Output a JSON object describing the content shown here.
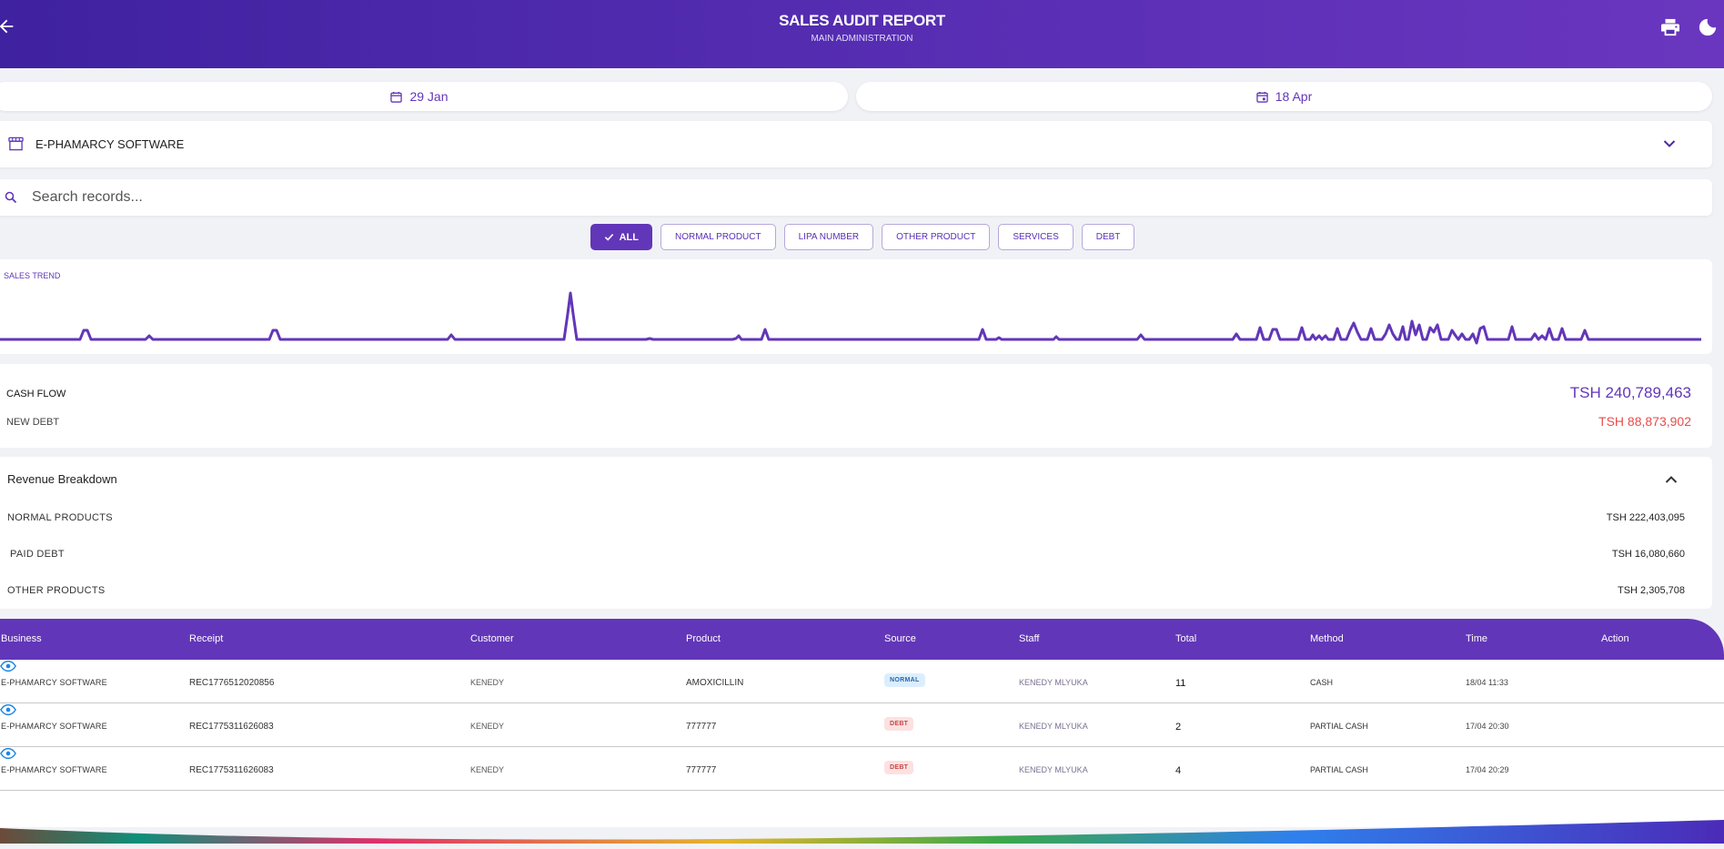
{
  "header": {
    "title": "SALES AUDIT REPORT",
    "subtitle": "MAIN ADMINISTRATION"
  },
  "dates": {
    "start": "29 Jan",
    "end": "18 Apr"
  },
  "business_select": {
    "value": "E-PHAMARCY SOFTWARE"
  },
  "search": {
    "placeholder": "Search records..."
  },
  "filters": [
    {
      "label": "ALL",
      "active": true
    },
    {
      "label": "NORMAL PRODUCT",
      "active": false
    },
    {
      "label": "LIPA NUMBER",
      "active": false
    },
    {
      "label": "OTHER PRODUCT",
      "active": false
    },
    {
      "label": "SERVICES",
      "active": false
    },
    {
      "label": "DEBT",
      "active": false
    }
  ],
  "trend": {
    "label": "SALES TREND",
    "color": "#6236b8"
  },
  "cashflow": {
    "cash_label": "CASH FLOW",
    "cash_value": "TSH 240,789,463",
    "debt_label": "NEW DEBT",
    "debt_value": "TSH 88,873,902"
  },
  "revenue": {
    "title": "Revenue Breakdown",
    "rows": [
      {
        "label": "NORMAL PRODUCTS",
        "value": "TSH 222,403,095"
      },
      {
        "label": "PAID DEBT",
        "value": "TSH 16,080,660"
      },
      {
        "label": "OTHER PRODUCTS",
        "value": "TSH 2,305,708"
      }
    ]
  },
  "table": {
    "headers": {
      "business": "Business",
      "receipt": "Receipt",
      "customer": "Customer",
      "product": "Product",
      "source": "Source",
      "staff": "Staff",
      "total": "Total",
      "method": "Method",
      "time": "Time",
      "action": "Action"
    },
    "rows": [
      {
        "business": "E-PHAMARCY SOFTWARE",
        "receipt": "REC1776512020856",
        "customer": "KENEDY",
        "product": "AMOXICILLIN",
        "source": "NORMAL",
        "staff": "KENEDY MLYUKA",
        "total": "11",
        "method": "CASH",
        "time": "18/04 11:33"
      },
      {
        "business": "E-PHAMARCY SOFTWARE",
        "receipt": "REC1775311626083",
        "customer": "KENEDY",
        "product": "777777",
        "source": "DEBT",
        "staff": "KENEDY MLYUKA",
        "total": "2",
        "method": "PARTIAL CASH",
        "time": "17/04 20:30"
      },
      {
        "business": "E-PHAMARCY SOFTWARE",
        "receipt": "REC1775311626083",
        "customer": "KENEDY",
        "product": "777777",
        "source": "DEBT",
        "staff": "KENEDY MLYUKA",
        "total": "4",
        "method": "PARTIAL CASH",
        "time": "17/04 20:29"
      }
    ]
  },
  "colors": {
    "accent": "#6236b8",
    "debt": "#e94b4b",
    "header_start": "#3f22a0",
    "header_end": "#6a36bf"
  }
}
